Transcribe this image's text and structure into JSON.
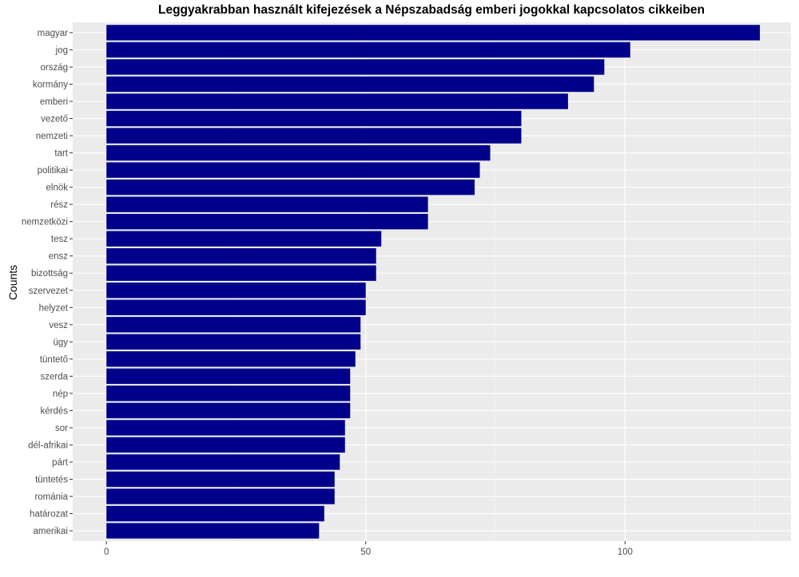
{
  "chart_data": {
    "type": "bar",
    "orientation": "horizontal",
    "title": "Leggyakrabban használt kifejezések a Népszabadság emberi jogokkal kapcsolatos cikkeiben",
    "xlabel": "",
    "ylabel": "Counts",
    "categories": [
      "magyar",
      "jog",
      "ország",
      "kormány",
      "emberi",
      "vezető",
      "nemzeti",
      "tart",
      "politikai",
      "elnök",
      "rész",
      "nemzetközi",
      "tesz",
      "ensz",
      "bizottság",
      "szervezet",
      "helyzet",
      "vesz",
      "ügy",
      "tüntető",
      "szerda",
      "nép",
      "kérdés",
      "sor",
      "dél-afrikai",
      "párt",
      "tüntetés",
      "románia",
      "határozat",
      "amerikai"
    ],
    "values": [
      126,
      101,
      96,
      94,
      89,
      80,
      80,
      74,
      72,
      71,
      62,
      62,
      53,
      52,
      52,
      50,
      50,
      49,
      49,
      48,
      47,
      47,
      47,
      46,
      46,
      45,
      44,
      44,
      42,
      41
    ],
    "x_ticks": [
      0,
      50,
      100
    ],
    "xlim": [
      -6.5,
      132
    ],
    "grid": true,
    "colors": {
      "bar": "#00008B",
      "panel": "#EBEBEB",
      "grid_major": "#FFFFFF",
      "grid_minor": "#F5F5F5",
      "tick_text": "#4D4D4D"
    }
  }
}
